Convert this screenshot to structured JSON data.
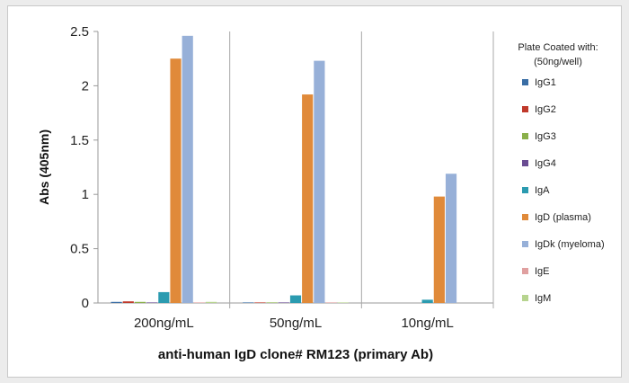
{
  "chart_data": {
    "type": "bar",
    "title": "",
    "xlabel": "anti-human IgD clone# RM123 (primary Ab)",
    "ylabel": "Abs (405nm)",
    "ylim": [
      0,
      2.5
    ],
    "yticks": [
      "0",
      "0.5",
      "1",
      "1.5",
      "2",
      "2.5"
    ],
    "grid": "vertical separators",
    "legend_position": "right",
    "legend_title": [
      "Plate Coated with:",
      "(50ng/well)"
    ],
    "categories": [
      "200ng/mL",
      "50ng/mL",
      "10ng/mL"
    ],
    "series": [
      {
        "name": "IgG1",
        "color": "#3a6ea5",
        "values": [
          0.01,
          0.005,
          0.0
        ]
      },
      {
        "name": "IgG2",
        "color": "#c0392b",
        "values": [
          0.015,
          0.005,
          0.0
        ]
      },
      {
        "name": "IgG3",
        "color": "#8ab04a",
        "values": [
          0.01,
          0.005,
          0.0
        ]
      },
      {
        "name": "IgG4",
        "color": "#6a4c93",
        "values": [
          0.005,
          0.005,
          0.0
        ]
      },
      {
        "name": "IgA",
        "color": "#2b9bb0",
        "values": [
          0.1,
          0.07,
          0.03
        ]
      },
      {
        "name": "IgD (plasma)",
        "color": "#e08a3a",
        "values": [
          2.25,
          1.92,
          0.98
        ]
      },
      {
        "name": "IgDk (myeloma)",
        "color": "#97b0d8",
        "values": [
          2.46,
          2.23,
          1.19
        ]
      },
      {
        "name": "IgE",
        "color": "#e0a0a0",
        "values": [
          0.005,
          0.005,
          0.0
        ]
      },
      {
        "name": "IgM",
        "color": "#b7d48f",
        "values": [
          0.01,
          0.005,
          0.0
        ]
      }
    ]
  }
}
